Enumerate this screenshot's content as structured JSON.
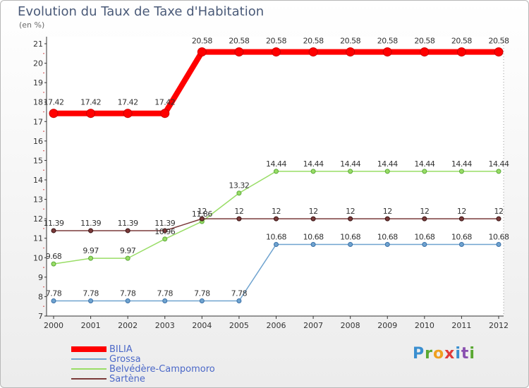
{
  "title": "Evolution du Taux de Taxe d'Habitation",
  "unit": "(en %)",
  "logo": "Proxiti",
  "chart_data": {
    "type": "line",
    "title": "Evolution du Taux de Taxe d'Habitation",
    "ylabel": "(en %)",
    "x": [
      "2000",
      "2001",
      "2002",
      "2003",
      "2004",
      "2005",
      "2006",
      "2007",
      "2008",
      "2009",
      "2010",
      "2011",
      "2012"
    ],
    "ylim": [
      7,
      21
    ],
    "yticks": [
      7,
      8,
      9,
      10,
      11,
      12,
      13,
      14,
      15,
      16,
      17,
      18,
      19,
      20,
      21
    ],
    "grid": false,
    "legend": "bottom-left",
    "series": [
      {
        "name": "BILIA",
        "color": "#ff0000",
        "values": [
          17.42,
          17.42,
          17.42,
          17.42,
          20.58,
          20.58,
          20.58,
          20.58,
          20.58,
          20.58,
          20.58,
          20.58,
          20.58
        ]
      },
      {
        "name": "Grossa",
        "color": "#6fa3cf",
        "values": [
          7.78,
          7.78,
          7.78,
          7.78,
          7.78,
          7.78,
          10.68,
          10.68,
          10.68,
          10.68,
          10.68,
          10.68,
          10.68
        ]
      },
      {
        "name": "Belvédère-Campomoro",
        "color": "#99dd66",
        "values": [
          9.68,
          9.97,
          9.97,
          10.96,
          11.86,
          13.32,
          14.44,
          14.44,
          14.44,
          14.44,
          14.44,
          14.44,
          14.44
        ]
      },
      {
        "name": "Sartène",
        "color": "#7a3a3a",
        "values": [
          11.39,
          11.39,
          11.39,
          11.39,
          12,
          12,
          12,
          12,
          12,
          12,
          12,
          12,
          12
        ]
      }
    ],
    "labels": [
      [
        "17.42",
        "17.42",
        "17.42",
        "17.42",
        "20.58",
        "20.58",
        "20.58",
        "20.58",
        "20.58",
        "20.58",
        "20.58",
        "20.58",
        "20.58"
      ],
      [
        "7.78",
        "7.78",
        "7.78",
        "7.78",
        "7.78",
        "7.78",
        "10.68",
        "10.68",
        "10.68",
        "10.68",
        "10.68",
        "10.68",
        "10.68"
      ],
      [
        "9.68",
        "9.97",
        "9.97",
        "10.96",
        "11.86",
        "13.32",
        "14.44",
        "14.44",
        "14.44",
        "14.44",
        "14.44",
        "14.44",
        "14.44"
      ],
      [
        "11.39",
        "11.39",
        "11.39",
        "11.39",
        "12",
        "12",
        "12",
        "12",
        "12",
        "12",
        "12",
        "12",
        "12"
      ]
    ]
  }
}
